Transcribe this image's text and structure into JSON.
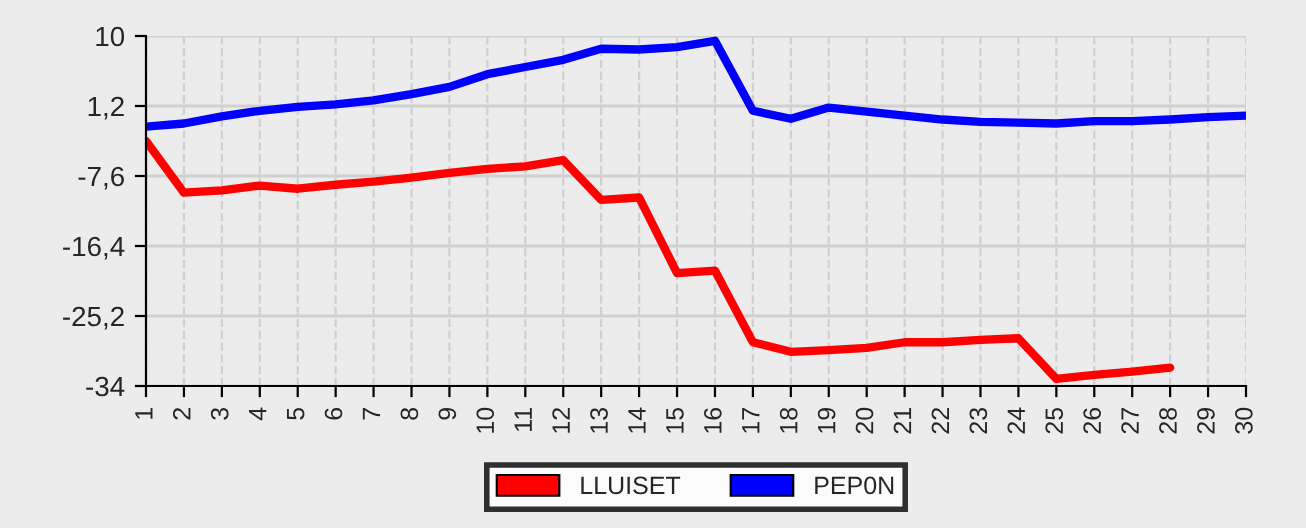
{
  "chart_data": {
    "type": "line",
    "categories": [
      "1",
      "2",
      "3",
      "4",
      "5",
      "6",
      "7",
      "8",
      "9",
      "10",
      "11",
      "12",
      "13",
      "14",
      "15",
      "16",
      "17",
      "18",
      "19",
      "20",
      "21",
      "22",
      "23",
      "24",
      "25",
      "26",
      "27",
      "28",
      "29",
      "30"
    ],
    "series": [
      {
        "name": "LLUISET",
        "color": "#ff0000",
        "values": [
          -3.2,
          -9.7,
          -9.4,
          -8.8,
          -9.2,
          -8.7,
          -8.3,
          -7.8,
          -7.2,
          -6.7,
          -6.4,
          -5.6,
          -10.6,
          -10.3,
          -19.8,
          -19.5,
          -28.5,
          -29.7,
          -29.5,
          -29.2,
          -28.5,
          -28.5,
          -28.2,
          -28.0,
          -33.1,
          -32.6,
          -32.2,
          -31.7,
          null,
          null
        ]
      },
      {
        "name": "PEP0N",
        "color": "#0000ff",
        "values": [
          -1.4,
          -1.0,
          -0.1,
          0.6,
          1.1,
          1.4,
          1.9,
          2.7,
          3.6,
          5.2,
          6.1,
          7.0,
          8.4,
          8.3,
          8.6,
          9.4,
          0.6,
          -0.4,
          1.0,
          0.5,
          0.0,
          -0.5,
          -0.8,
          -0.9,
          -1.0,
          -0.7,
          -0.7,
          -0.5,
          -0.2,
          0.0
        ]
      }
    ],
    "ylim": [
      -34,
      10
    ],
    "yticks": [
      {
        "value": 10,
        "label": "10"
      },
      {
        "value": 1.2,
        "label": "1,2"
      },
      {
        "value": -7.6,
        "label": "-7,6"
      },
      {
        "value": -16.4,
        "label": "-16,4"
      },
      {
        "value": -25.2,
        "label": "-25,2"
      },
      {
        "value": -34,
        "label": "-34"
      }
    ],
    "grid": true,
    "legend": "bottom",
    "line_style": "solid",
    "marker": "none"
  }
}
